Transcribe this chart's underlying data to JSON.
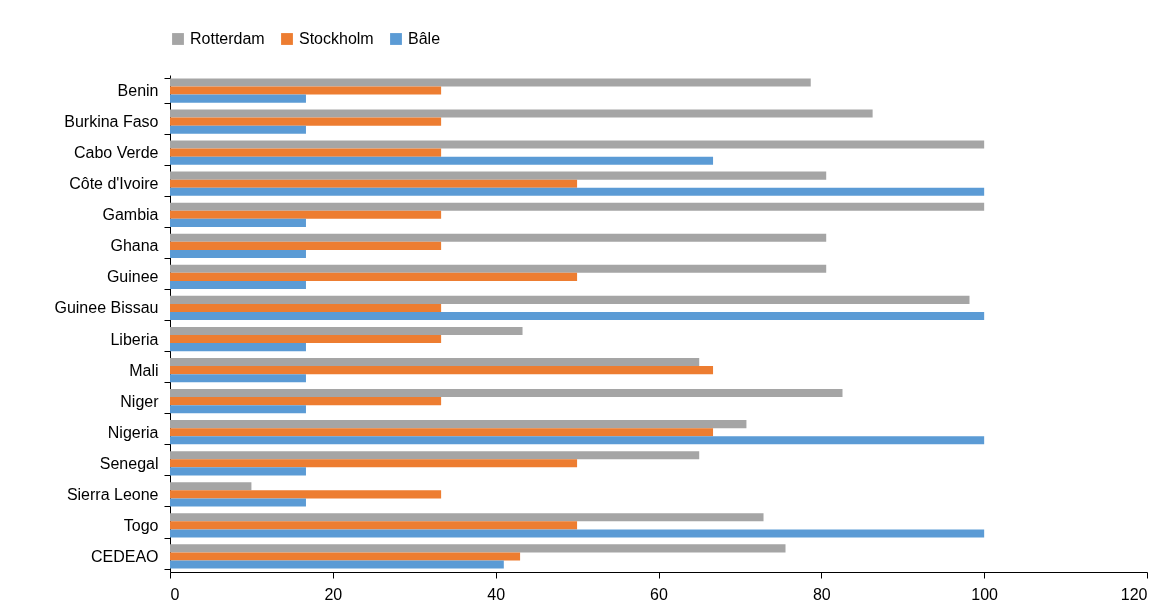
{
  "chart_data": {
    "type": "bar",
    "orientation": "horizontal",
    "legend": "top",
    "categories": [
      "Benin",
      "Burkina Faso",
      "Cabo Verde",
      "Côte d'Ivoire",
      "Gambia",
      "Ghana",
      "Guinee",
      "Guinee Bissau",
      "Liberia",
      "Mali",
      "Niger",
      "Nigeria",
      "Senegal",
      "Sierra Leone",
      "Togo",
      "CEDEAO"
    ],
    "series": [
      {
        "name": "Rotterdam",
        "color": "#a5a5a5",
        "values": [
          78.7,
          86.3,
          100,
          80.6,
          100,
          80.6,
          80.6,
          98.2,
          43.3,
          65,
          82.6,
          70.8,
          65,
          10,
          72.9,
          75.6
        ]
      },
      {
        "name": "Stockholm",
        "color": "#ed7d31",
        "values": [
          33.3,
          33.3,
          33.3,
          50,
          33.3,
          33.3,
          50,
          33.3,
          33.3,
          66.7,
          33.3,
          66.7,
          50,
          33.3,
          50,
          43
        ]
      },
      {
        "name": "Bâle",
        "color": "#5b9bd5",
        "values": [
          16.7,
          16.7,
          66.7,
          100,
          16.7,
          16.7,
          16.7,
          100,
          16.7,
          16.7,
          16.7,
          100,
          16.7,
          16.7,
          100,
          41
        ]
      }
    ],
    "xlim": [
      0,
      120
    ],
    "xticks": [
      0,
      20,
      40,
      60,
      80,
      100,
      120
    ]
  }
}
